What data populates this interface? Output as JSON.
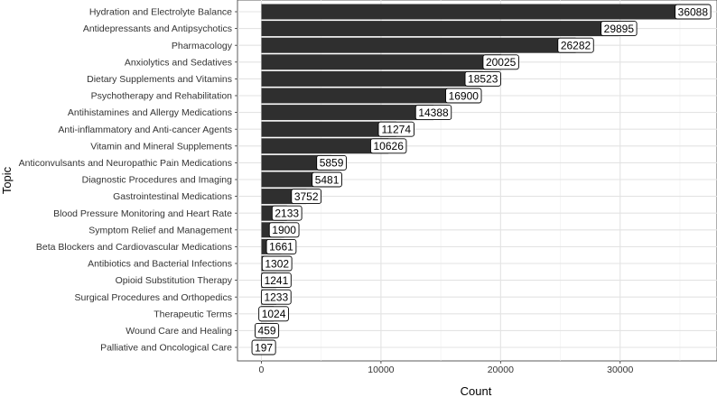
{
  "chart_data": {
    "type": "bar",
    "orientation": "horizontal",
    "xlabel": "Count",
    "ylabel": "Topic",
    "xlim": [
      -2000,
      38100
    ],
    "xticks": [
      0,
      10000,
      20000,
      30000
    ],
    "grid": true,
    "bar_color": "#2f2f2f",
    "categories": [
      "Hydration and Electrolyte Balance",
      "Antidepressants and Antipsychotics",
      "Pharmacology",
      "Anxiolytics and Sedatives",
      "Dietary Supplements and Vitamins",
      "Psychotherapy and Rehabilitation",
      "Antihistamines and Allergy Medications",
      "Anti-inflammatory and Anti-cancer Agents",
      "Vitamin and Mineral Supplements",
      "Anticonvulsants and Neuropathic Pain Medications",
      "Diagnostic Procedures and Imaging",
      "Gastrointestinal Medications",
      "Blood Pressure Monitoring and Heart Rate",
      "Symptom Relief and Management",
      "Beta Blockers and Cardiovascular Medications",
      "Antibiotics and Bacterial Infections",
      "Opioid Substitution Therapy",
      "Surgical Procedures and Orthopedics",
      "Therapeutic Terms",
      "Wound Care and Healing",
      "Palliative and Oncological Care"
    ],
    "values": [
      36088,
      29895,
      26282,
      20025,
      18523,
      16900,
      14388,
      11274,
      10626,
      5859,
      5481,
      3752,
      2133,
      1900,
      1661,
      1302,
      1241,
      1233,
      1024,
      459,
      197
    ]
  }
}
